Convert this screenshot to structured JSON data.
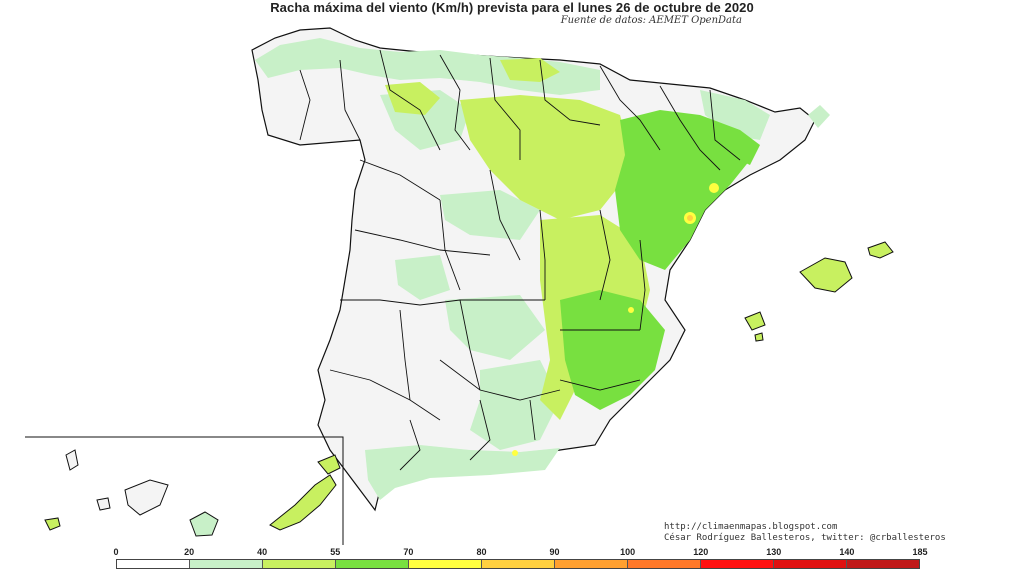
{
  "title": "Racha máxima del viento (Km/h) prevista para el lunes 26 de octubre de 2020",
  "subtitle": "Fuente de datos: AEMET OpenData",
  "credits": {
    "line1": "http://climaenmapas.blogspot.com",
    "line2": "César Rodríguez Ballesteros, twitter: @crballesteros"
  },
  "legend": {
    "labels": [
      "0",
      "20",
      "40",
      "55",
      "70",
      "80",
      "90",
      "100",
      "120",
      "130",
      "140",
      "185"
    ],
    "colors": [
      "#ffffff",
      "#c8f0c8",
      "#c8f060",
      "#78e040",
      "#ffff40",
      "#ffd040",
      "#ffa030",
      "#ff7828",
      "#ff1010",
      "#e01010",
      "#c01818"
    ]
  },
  "colors": {
    "background_land": "#f4f4f4",
    "border": "#111111",
    "light_green": "#c8f0c8",
    "lime": "#c8f060",
    "green": "#78e040",
    "yellow": "#ffff40",
    "orange": "#ffd040"
  }
}
